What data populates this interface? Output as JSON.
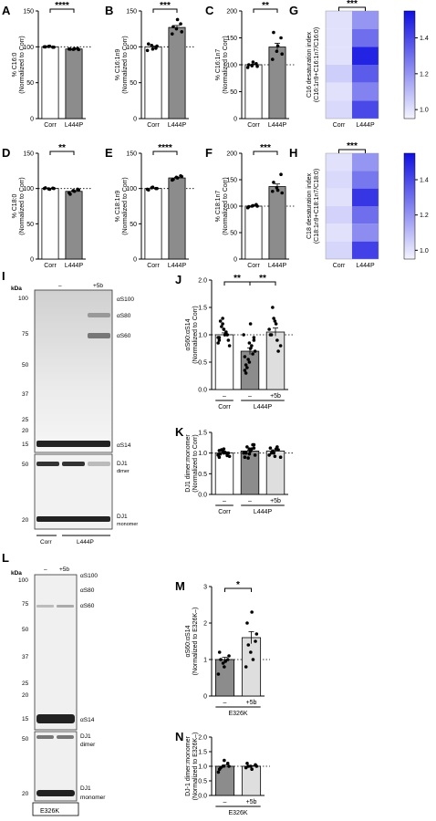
{
  "colors": {
    "ctrl": "#ffffff",
    "mut": "#8c8c8c",
    "treat": "#dedede",
    "heat_low": "#f4f4ff",
    "heat_high": "#1010e0"
  },
  "chart_data": [
    {
      "panel": "A",
      "type": "bar",
      "ylabel": [
        "% C16:0",
        "(Normalized to Corr)"
      ],
      "categories": [
        "Corr",
        "L444P"
      ],
      "values": [
        100,
        97
      ],
      "ylim": [
        0,
        150
      ],
      "yticks": [
        0,
        50,
        100,
        150
      ],
      "sig": "****",
      "points": [
        [
          100,
          100.5,
          99.5,
          100,
          100.8,
          99.4
        ],
        [
          97,
          96.5,
          97.8,
          96.8,
          97.3,
          96.2
        ]
      ]
    },
    {
      "panel": "B",
      "type": "bar",
      "ylabel": [
        "% C16:1n9",
        "(Normalized to Corr)"
      ],
      "categories": [
        "Corr",
        "L444P"
      ],
      "values": [
        100,
        127
      ],
      "ylim": [
        0,
        150
      ],
      "yticks": [
        0,
        50,
        100,
        150
      ],
      "sig": "***",
      "points": [
        [
          95,
          102,
          98,
          104,
          97,
          101
        ],
        [
          118,
          125,
          132,
          128,
          138,
          121
        ]
      ]
    },
    {
      "panel": "C",
      "type": "bar",
      "ylabel": [
        "% C16:1n7",
        "(Normalized to Corr)"
      ],
      "categories": [
        "Corr",
        "L444P"
      ],
      "values": [
        100,
        133
      ],
      "ylim": [
        0,
        200
      ],
      "yticks": [
        0,
        50,
        100,
        150,
        200
      ],
      "sig": "**",
      "points": [
        [
          95,
          98,
          102,
          100,
          105,
          97
        ],
        [
          110,
          125,
          150,
          160,
          135,
          120
        ]
      ]
    },
    {
      "panel": "D",
      "type": "bar",
      "ylabel": [
        "% C18:0",
        "(Normalized to Corr)"
      ],
      "categories": [
        "Corr",
        "L444P"
      ],
      "values": [
        100,
        96
      ],
      "ylim": [
        0,
        150
      ],
      "yticks": [
        0,
        50,
        100,
        150
      ],
      "sig": "**",
      "points": [
        [
          100,
          99.5,
          100.5,
          101,
          99,
          100
        ],
        [
          94,
          97,
          99,
          92,
          96,
          98
        ]
      ]
    },
    {
      "panel": "E",
      "type": "bar",
      "ylabel": [
        "% C18:1n9",
        "(Normalized to Corr)"
      ],
      "categories": [
        "Corr",
        "L444P"
      ],
      "values": [
        100,
        115
      ],
      "ylim": [
        0,
        150
      ],
      "yticks": [
        0,
        50,
        100,
        150
      ],
      "sig": "****",
      "points": [
        [
          99,
          101,
          100,
          98,
          102,
          100
        ],
        [
          112,
          116,
          118,
          113,
          115,
          117
        ]
      ]
    },
    {
      "panel": "F",
      "type": "bar",
      "ylabel": [
        "% C18:1n7",
        "(Normalized to Corr)"
      ],
      "categories": [
        "Corr",
        "L444P"
      ],
      "values": [
        100,
        137
      ],
      "ylim": [
        0,
        200
      ],
      "yticks": [
        0,
        50,
        100,
        150,
        200
      ],
      "sig": "***",
      "points": [
        [
          97,
          100,
          103,
          99,
          101,
          100
        ],
        [
          128,
          135,
          160,
          145,
          130,
          125
        ]
      ]
    },
    {
      "panel": "G",
      "type": "heatmap",
      "ylabel": [
        "C16 desaturation index",
        "(C16:1n9+C16:1n7/C16:0)"
      ],
      "columns": [
        "Corr",
        "L444P"
      ],
      "sig": "***",
      "values": [
        [
          1.0,
          1.2
        ],
        [
          1.0,
          1.3
        ],
        [
          1.0,
          1.5
        ],
        [
          1.05,
          1.35
        ],
        [
          1.0,
          1.25
        ],
        [
          1.02,
          1.4
        ]
      ],
      "scale": [
        0.95,
        1.55
      ],
      "colorbar_ticks": [
        1.0,
        1.2,
        1.4
      ]
    },
    {
      "panel": "H",
      "type": "heatmap",
      "ylabel": [
        "C18 desaturation index",
        "(C18:1n9+C18:1n7/C18:0)"
      ],
      "columns": [
        "Corr",
        "L444P"
      ],
      "sig": "***",
      "values": [
        [
          1.0,
          1.2
        ],
        [
          1.02,
          1.28
        ],
        [
          1.0,
          1.45
        ],
        [
          1.04,
          1.3
        ],
        [
          1.0,
          1.22
        ],
        [
          1.03,
          1.42
        ]
      ],
      "scale": [
        0.95,
        1.55
      ],
      "colorbar_ticks": [
        1.0,
        1.2,
        1.4
      ]
    },
    {
      "panel": "J",
      "type": "bar",
      "ylabel": [
        "αS60:αS14",
        "(Normalized to Corr)"
      ],
      "categories": [
        "–",
        "–",
        "+5b"
      ],
      "groups": [
        {
          "label": "Corr",
          "span": [
            0,
            0
          ]
        },
        {
          "label": "L444P",
          "span": [
            1,
            2
          ]
        }
      ],
      "values": [
        1.0,
        0.7,
        1.05
      ],
      "ylim": [
        0,
        2.0
      ],
      "yticks": [
        0.0,
        0.5,
        1.0,
        1.5,
        2.0
      ],
      "sigs": [
        {
          "text": "**",
          "from": 0,
          "to": 1
        },
        {
          "text": "**",
          "from": 1,
          "to": 2
        }
      ],
      "points": [
        [
          0.85,
          1.2,
          1.0,
          0.95,
          1.1,
          0.9,
          1.25,
          1.0,
          0.8,
          1.15,
          1.05,
          0.95,
          1.3,
          1.0,
          0.9,
          1.1
        ],
        [
          0.6,
          0.5,
          0.9,
          0.3,
          1.2,
          0.7,
          0.4,
          0.8,
          1.0,
          0.55,
          0.65,
          0.35,
          0.85,
          0.95,
          0.45,
          0.75
        ],
        [
          1.0,
          1.2,
          0.8,
          1.5,
          0.9,
          1.1,
          1.3,
          0.7,
          1.0,
          1.25
        ]
      ]
    },
    {
      "panel": "K",
      "type": "bar",
      "ylabel": [
        "DJ1 dimer:monomer",
        "(Normalized to Corr)"
      ],
      "categories": [
        "–",
        "–",
        "+5b"
      ],
      "groups": [
        {
          "label": "Corr",
          "span": [
            0,
            0
          ]
        },
        {
          "label": "L444P",
          "span": [
            1,
            2
          ]
        }
      ],
      "values": [
        1.0,
        1.05,
        1.05
      ],
      "ylim": [
        0,
        1.5
      ],
      "yticks": [
        0.0,
        0.5,
        1.0,
        1.5
      ],
      "sigs": [],
      "points": [
        [
          0.95,
          1.05,
          1.0,
          0.9,
          1.1,
          1.0,
          0.98,
          1.02,
          0.92,
          1.08,
          1.0,
          0.96,
          1.04,
          0.94,
          1.06,
          1.0
        ],
        [
          0.9,
          1.1,
          1.2,
          1.0,
          1.05,
          0.95,
          1.15,
          1.1,
          1.0,
          0.88,
          1.2,
          1.02,
          0.98,
          1.12,
          1.0,
          1.05
        ],
        [
          1.0,
          1.1,
          0.9,
          1.05,
          1.15,
          0.95,
          1.0,
          1.08,
          1.12,
          0.92
        ]
      ]
    },
    {
      "panel": "M",
      "type": "bar",
      "ylabel": [
        "αS60:αS14",
        "(Normalized to E326K–)"
      ],
      "categories": [
        "–",
        "+5b"
      ],
      "groups": [
        {
          "label": "E326K",
          "span": [
            0,
            1
          ]
        }
      ],
      "values": [
        1.0,
        1.6
      ],
      "ylim": [
        0,
        3
      ],
      "yticks": [
        0,
        1,
        2,
        3
      ],
      "sigs": [
        {
          "text": "*",
          "from": 0,
          "to": 1
        }
      ],
      "points": [
        [
          0.6,
          0.9,
          1.0,
          1.2,
          0.8,
          1.1,
          1.0,
          0.95
        ],
        [
          0.8,
          1.2,
          1.5,
          2.0,
          2.3,
          1.7,
          1.4,
          1.0
        ]
      ]
    },
    {
      "panel": "N",
      "type": "bar",
      "ylabel": [
        "DJ-1 dimer:monomer",
        "(Normalized to E326K–)"
      ],
      "categories": [
        "–",
        "+5b"
      ],
      "groups": [
        {
          "label": "E326K",
          "span": [
            0,
            1
          ]
        }
      ],
      "values": [
        1.0,
        1.0
      ],
      "ylim": [
        0,
        2.0
      ],
      "yticks": [
        0.0,
        0.5,
        1.0,
        1.5,
        2.0
      ],
      "sigs": [],
      "points": [
        [
          0.8,
          1.0,
          1.1,
          0.9,
          1.2,
          1.0,
          0.95
        ],
        [
          0.95,
          1.0,
          1.05,
          1.1,
          0.9,
          1.0,
          1.0
        ]
      ]
    }
  ],
  "blots": {
    "I": {
      "label": "I",
      "kda": "kDa",
      "lanes": [
        "–",
        "+5b"
      ],
      "groups": [
        "Corr",
        "L444P"
      ],
      "markers": [
        "100",
        "75",
        "50",
        "37",
        "25",
        "20",
        "15",
        "50",
        "20"
      ],
      "bands": [
        "αS100",
        "αS80",
        "αS60",
        "αS14",
        "DJ1",
        "dimer",
        "DJ1",
        "monomer"
      ]
    },
    "L": {
      "label": "L",
      "kda": "kDa",
      "lanes": [
        "–",
        "+5b"
      ],
      "group": "E326K",
      "markers": [
        "100",
        "75",
        "50",
        "37",
        "25",
        "20",
        "15",
        "50",
        "20"
      ],
      "bands": [
        "αS100",
        "αS80",
        "αS60",
        "αS14",
        "DJ1",
        "dimer",
        "DJ1",
        "monomer"
      ]
    }
  }
}
